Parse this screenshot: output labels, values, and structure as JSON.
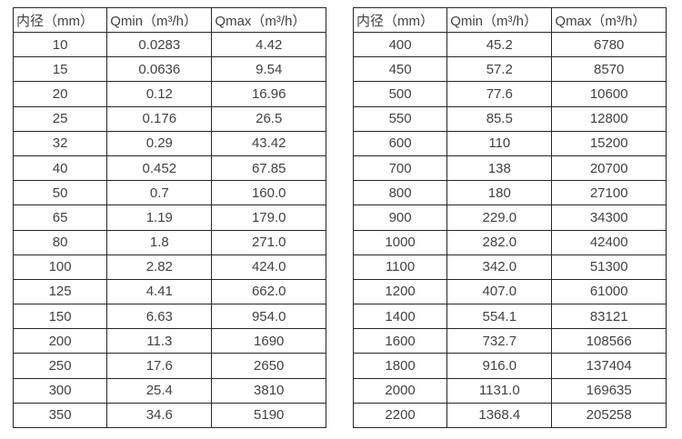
{
  "page": {
    "background_color": "#ffffff",
    "border_color": "#262626",
    "text_color": "#424242"
  },
  "table_headers": [
    "内径（mm）",
    "Qmin（m³/h）",
    "Qmax（m³/h）"
  ],
  "left_table": {
    "rows": [
      [
        "10",
        "0.0283",
        "4.42"
      ],
      [
        "15",
        "0.0636",
        "9.54"
      ],
      [
        "20",
        "0.12",
        "16.96"
      ],
      [
        "25",
        "0.176",
        "26.5"
      ],
      [
        "32",
        "0.29",
        "43.42"
      ],
      [
        "40",
        "0.452",
        "67.85"
      ],
      [
        "50",
        "0.7",
        "160.0"
      ],
      [
        "65",
        "1.19",
        "179.0"
      ],
      [
        "80",
        "1.8",
        "271.0"
      ],
      [
        "100",
        "2.82",
        "424.0"
      ],
      [
        "125",
        "4.41",
        "662.0"
      ],
      [
        "150",
        "6.63",
        "954.0"
      ],
      [
        "200",
        "11.3",
        "1690"
      ],
      [
        "250",
        "17.6",
        "2650"
      ],
      [
        "300",
        "25.4",
        "3810"
      ],
      [
        "350",
        "34.6",
        "5190"
      ]
    ]
  },
  "right_table": {
    "rows": [
      [
        "400",
        "45.2",
        "6780"
      ],
      [
        "450",
        "57.2",
        "8570"
      ],
      [
        "500",
        "77.6",
        "10600"
      ],
      [
        "550",
        "85.5",
        "12800"
      ],
      [
        "600",
        "110",
        "15200"
      ],
      [
        "700",
        "138",
        "20700"
      ],
      [
        "800",
        "180",
        "27100"
      ],
      [
        "900",
        "229.0",
        "34300"
      ],
      [
        "1000",
        "282.0",
        "42400"
      ],
      [
        "1100",
        "342.0",
        "51300"
      ],
      [
        "1200",
        "407.0",
        "61000"
      ],
      [
        "1400",
        "554.1",
        "83121"
      ],
      [
        "1600",
        "732.7",
        "108566"
      ],
      [
        "1800",
        "916.0",
        "137404"
      ],
      [
        "2000",
        "1131.0",
        "169635"
      ],
      [
        "2200",
        "1368.4",
        "205258"
      ]
    ]
  }
}
